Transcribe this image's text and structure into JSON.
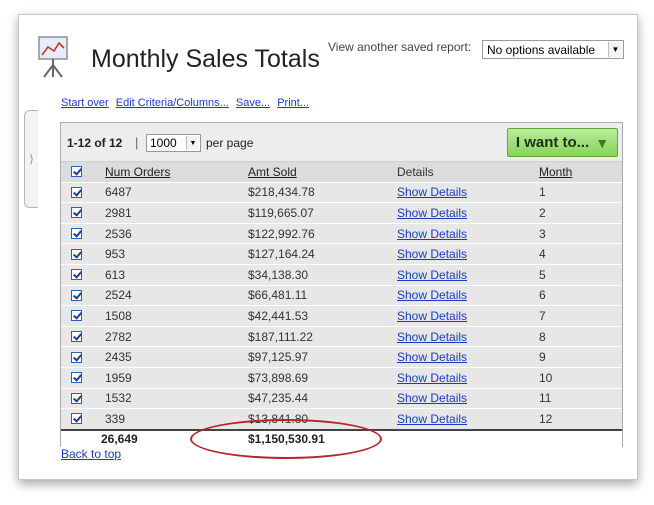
{
  "header": {
    "title": "Monthly Sales Totals",
    "view_label": "View another saved report:",
    "saved_report_select": "No options available"
  },
  "actions": [
    "Start over",
    "Edit Criteria/Columns...",
    "Save...",
    "Print..."
  ],
  "pager": {
    "range": "1-12 of 12",
    "separator": "|",
    "per_page_value": "1000",
    "per_page_label": "per page",
    "want_button": "I want to..."
  },
  "table": {
    "columns": [
      "Num Orders",
      "Amt Sold",
      "Details",
      "Month"
    ],
    "rows": [
      {
        "orders": "6487",
        "amount": "$218,434.78",
        "details": "Show Details",
        "month": "1"
      },
      {
        "orders": "2981",
        "amount": "$119,665.07",
        "details": "Show Details",
        "month": "2"
      },
      {
        "orders": "2536",
        "amount": "$122,992.76",
        "details": "Show Details",
        "month": "3"
      },
      {
        "orders": "953",
        "amount": "$127,164.24",
        "details": "Show Details",
        "month": "4"
      },
      {
        "orders": "613",
        "amount": "$34,138.30",
        "details": "Show Details",
        "month": "5"
      },
      {
        "orders": "2524",
        "amount": "$66,481.11",
        "details": "Show Details",
        "month": "6"
      },
      {
        "orders": "1508",
        "amount": "$42,441.53",
        "details": "Show Details",
        "month": "7"
      },
      {
        "orders": "2782",
        "amount": "$187,111.22",
        "details": "Show Details",
        "month": "8"
      },
      {
        "orders": "2435",
        "amount": "$97,125.97",
        "details": "Show Details",
        "month": "9"
      },
      {
        "orders": "1959",
        "amount": "$73,898.69",
        "details": "Show Details",
        "month": "10"
      },
      {
        "orders": "1532",
        "amount": "$47,235.44",
        "details": "Show Details",
        "month": "11"
      },
      {
        "orders": "339",
        "amount": "$13,841.80",
        "details": "Show Details",
        "month": "12"
      }
    ],
    "totals": {
      "orders": "26,649",
      "amount": "$1,150,530.91"
    }
  },
  "footer": {
    "back_to_top": "Back to top"
  },
  "colors": {
    "link": "#1a3bbf",
    "button_green": "#86d45a",
    "highlight_oval": "#b3262a"
  }
}
